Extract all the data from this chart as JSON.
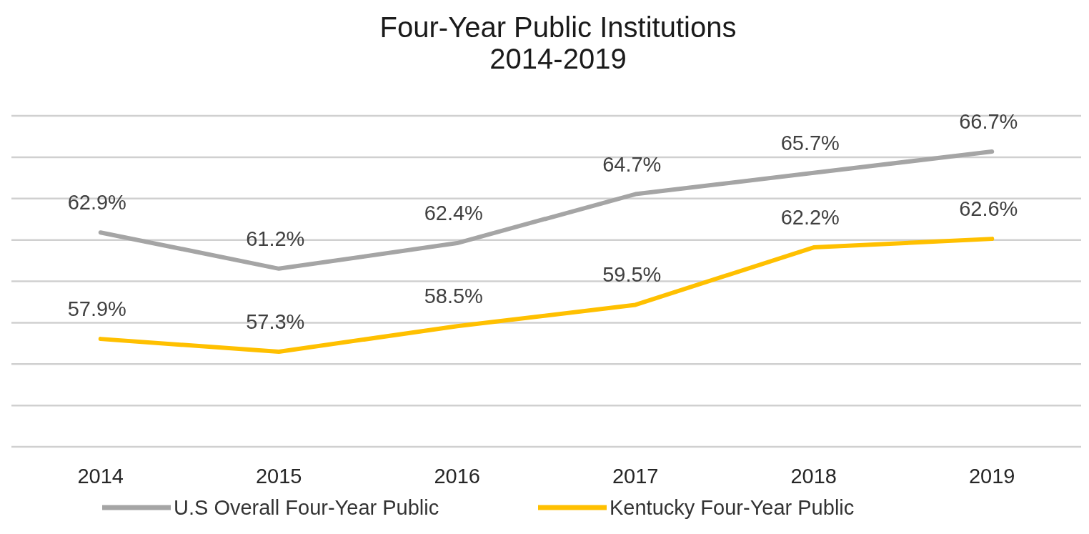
{
  "chart_data": {
    "type": "line",
    "title": "Four-Year Public Institutions\n2014-2019",
    "categories": [
      "2014",
      "2015",
      "2016",
      "2017",
      "2018",
      "2019"
    ],
    "series": [
      {
        "name": "U.S Overall Four-Year Public",
        "color": "#a5a5a5",
        "values": [
          62.9,
          61.2,
          62.4,
          64.7,
          65.7,
          66.7
        ],
        "value_labels": [
          "62.9%",
          "61.2%",
          "62.4%",
          "64.7%",
          "65.7%",
          "66.7%"
        ]
      },
      {
        "name": "Kentucky Four-Year Public",
        "color": "#ffc000",
        "values": [
          57.9,
          57.3,
          58.5,
          59.5,
          62.2,
          62.6
        ],
        "value_labels": [
          "57.9%",
          "57.3%",
          "58.5%",
          "59.5%",
          "62.2%",
          "62.6%"
        ]
      }
    ],
    "tick_labels": "x",
    "grid": "y",
    "legend": "bottom",
    "marker": "none",
    "line_style": "solid"
  }
}
